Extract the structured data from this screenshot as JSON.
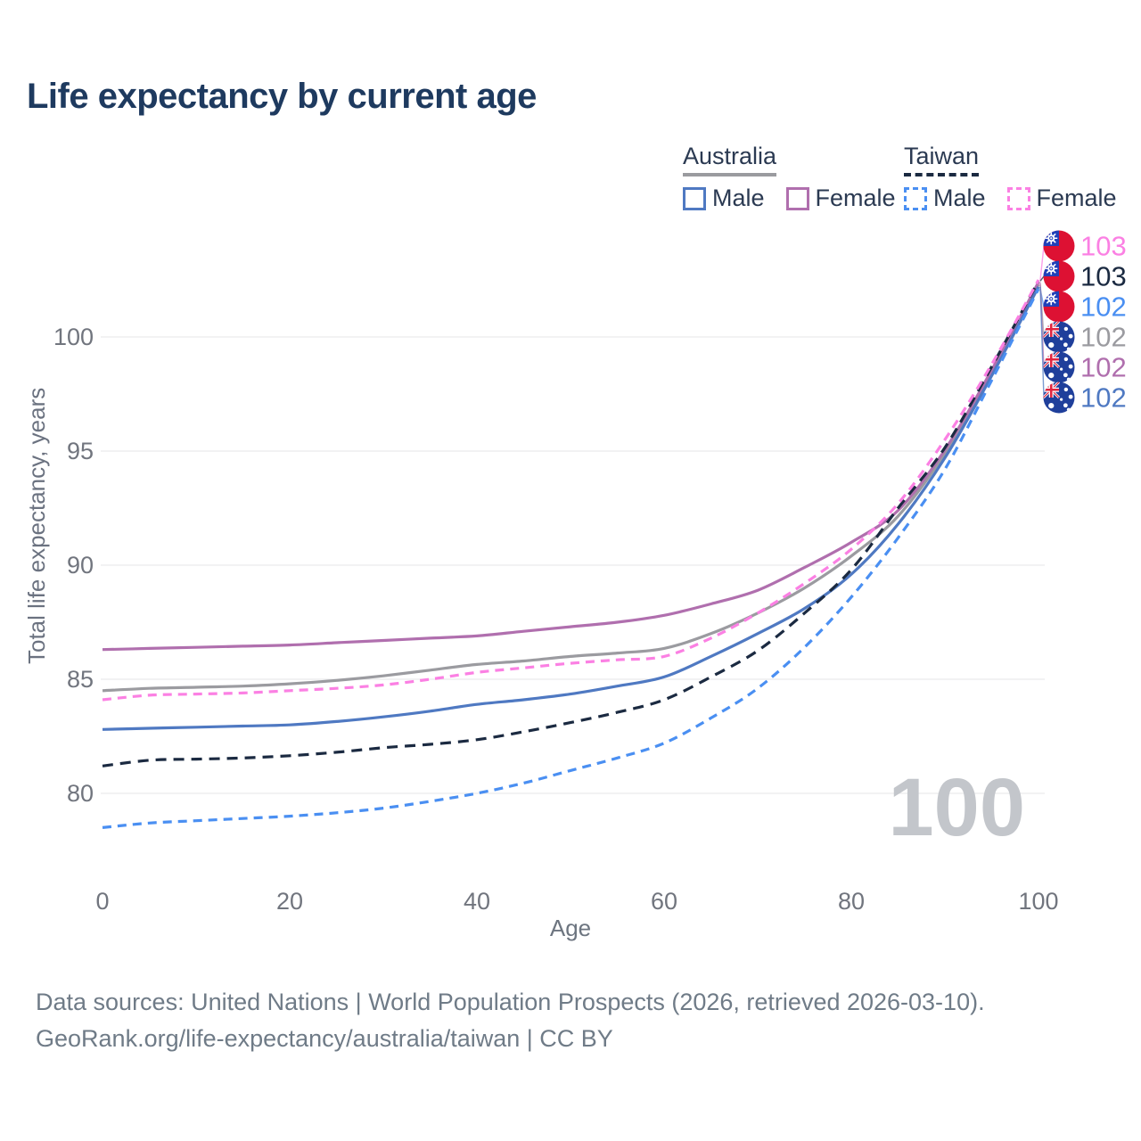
{
  "title": "Life expectancy by current age",
  "legend": {
    "groups": [
      {
        "label": "Australia",
        "style": "solid",
        "color": "#9a9b9f",
        "items": [
          {
            "label": "Male",
            "series": "Australia Male"
          },
          {
            "label": "Female",
            "series": "Australia Female"
          }
        ]
      },
      {
        "label": "Taiwan",
        "style": "dashed",
        "color": "#1b2a41",
        "items": [
          {
            "label": "Male",
            "series": "Taiwan Male"
          },
          {
            "label": "Female",
            "series": "Taiwan Female"
          }
        ]
      }
    ]
  },
  "chart_data": {
    "type": "line",
    "title": "Life expectancy by current age",
    "xlabel": "Age",
    "ylabel": "Total life expectancy, years",
    "xlim": [
      0,
      100
    ],
    "ylim": [
      77.5,
      103.5
    ],
    "xticks": [
      0,
      20,
      40,
      60,
      80,
      100
    ],
    "yticks": [
      80,
      85,
      90,
      95,
      100
    ],
    "grid": "horizontal",
    "legend_position": "top-right",
    "watermark": "100",
    "x": [
      0,
      5,
      10,
      15,
      20,
      25,
      30,
      35,
      40,
      45,
      50,
      55,
      60,
      65,
      70,
      75,
      80,
      85,
      90,
      95,
      100
    ],
    "series": [
      {
        "name": "Australia Male",
        "country": "Australia",
        "sex": "Male",
        "color": "#4f79c2",
        "dash": false,
        "values": [
          82.8,
          82.85,
          82.9,
          82.95,
          83.0,
          83.15,
          83.35,
          83.6,
          83.9,
          84.1,
          84.35,
          84.7,
          85.1,
          86.0,
          87.0,
          88.1,
          89.6,
          91.8,
          94.7,
          98.3,
          102.2
        ]
      },
      {
        "name": "Australia Female",
        "country": "Australia",
        "sex": "Female",
        "color": "#b06fae",
        "dash": false,
        "values": [
          86.3,
          86.35,
          86.4,
          86.45,
          86.5,
          86.6,
          86.7,
          86.8,
          86.9,
          87.1,
          87.3,
          87.5,
          87.8,
          88.3,
          88.9,
          89.9,
          91.0,
          92.4,
          95.05,
          98.55,
          102.4
        ]
      },
      {
        "name": "Australia Total",
        "country": "Australia",
        "sex": "All",
        "color": "#9b9ba0",
        "dash": false,
        "values": [
          84.5,
          84.6,
          84.65,
          84.7,
          84.8,
          84.95,
          85.15,
          85.4,
          85.65,
          85.8,
          86.0,
          86.15,
          86.35,
          87.0,
          87.9,
          89.0,
          90.4,
          92.15,
          94.9,
          98.45,
          102.3
        ]
      },
      {
        "name": "Taiwan Male",
        "country": "Taiwan",
        "sex": "Male",
        "color": "#4a8ff2",
        "dash": true,
        "values": [
          78.5,
          78.7,
          78.8,
          78.9,
          79.0,
          79.15,
          79.35,
          79.65,
          80.0,
          80.45,
          81.0,
          81.55,
          82.2,
          83.3,
          84.6,
          86.4,
          88.6,
          91.2,
          94.2,
          98.1,
          102.1
        ]
      },
      {
        "name": "Taiwan Female",
        "country": "Taiwan",
        "sex": "Female",
        "color": "#fb80e3",
        "dash": true,
        "values": [
          84.1,
          84.3,
          84.35,
          84.4,
          84.5,
          84.6,
          84.75,
          85.0,
          85.3,
          85.5,
          85.7,
          85.85,
          86.0,
          86.8,
          87.9,
          89.2,
          90.7,
          92.7,
          95.5,
          98.8,
          102.5
        ]
      },
      {
        "name": "Taiwan Total",
        "country": "Taiwan",
        "sex": "All",
        "color": "#1b2a41",
        "dash": true,
        "values": [
          81.2,
          81.45,
          81.5,
          81.55,
          81.65,
          81.8,
          82.0,
          82.15,
          82.35,
          82.7,
          83.1,
          83.55,
          84.1,
          85.1,
          86.25,
          87.9,
          89.8,
          92.5,
          95.15,
          98.7,
          102.45
        ]
      }
    ],
    "end_labels": [
      {
        "flag": "taiwan",
        "text": "103",
        "series": "Taiwan Female"
      },
      {
        "flag": "taiwan",
        "text": "103",
        "series": "Taiwan Total"
      },
      {
        "flag": "taiwan",
        "text": "102",
        "series": "Taiwan Male"
      },
      {
        "flag": "australia",
        "text": "102",
        "series": "Australia Total"
      },
      {
        "flag": "australia",
        "text": "102",
        "series": "Australia Female"
      },
      {
        "flag": "australia",
        "text": "102",
        "series": "Australia Male"
      }
    ]
  },
  "footer": {
    "line1": "Data sources: United Nations | World Population Prospects (2026, retrieved 2026-03-10).",
    "line2": "GeoRank.org/life-expectancy/australia/taiwan | CC BY"
  },
  "colors": {
    "title_text": "#1e3a5f",
    "axis_text": "#71757e",
    "gridline": "#e9eaec",
    "watermark": "#c3c6cb",
    "footer_text": "#6f7b87",
    "taiwan_flag_red": "#dd1133",
    "taiwan_flag_blue": "#2040b8",
    "australia_flag_blue": "#1f3f9b"
  }
}
